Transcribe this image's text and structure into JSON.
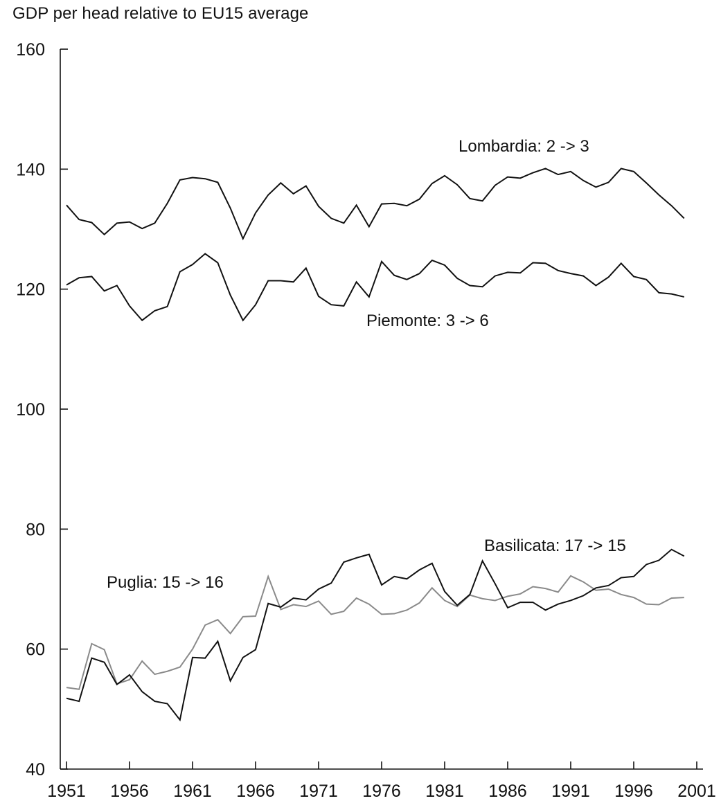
{
  "chart_data": {
    "type": "line",
    "title": "",
    "ylabel": "GDP per head relative to EU15 average",
    "xlabel": "",
    "ylim": [
      40,
      160
    ],
    "xlim": [
      1951,
      2001
    ],
    "yticks": [
      40,
      60,
      80,
      100,
      120,
      140,
      160
    ],
    "xticks": [
      1951,
      1956,
      1961,
      1966,
      1971,
      1976,
      1981,
      1986,
      1991,
      1996,
      2001
    ],
    "grid": false,
    "x": [
      1951,
      1952,
      1953,
      1954,
      1955,
      1956,
      1957,
      1958,
      1959,
      1960,
      1961,
      1962,
      1963,
      1964,
      1965,
      1966,
      1967,
      1968,
      1969,
      1970,
      1971,
      1972,
      1973,
      1974,
      1975,
      1976,
      1977,
      1978,
      1979,
      1980,
      1981,
      1982,
      1983,
      1984,
      1985,
      1986,
      1987,
      1988,
      1989,
      1990,
      1991,
      1992,
      1993,
      1994,
      1995,
      1996,
      1997,
      1998,
      1999,
      2000
    ],
    "series": [
      {
        "name": "Lombardia: 2 -> 3",
        "color": "#111111",
        "values": [
          134,
          131.6,
          131.1,
          129.1,
          131,
          131.2,
          130.1,
          131,
          134.3,
          138.2,
          138.6,
          138.4,
          137.8,
          133.5,
          128.4,
          132.7,
          135.7,
          137.7,
          135.9,
          137.2,
          133.8,
          131.8,
          131,
          134,
          130.4,
          134.2,
          134.3,
          133.9,
          135,
          137.6,
          138.9,
          137.4,
          135.1,
          134.7,
          137.3,
          138.7,
          138.5,
          139.4,
          140.1,
          139.1,
          139.6,
          138.1,
          137,
          137.8,
          140.1,
          139.6,
          137.7,
          135.7,
          133.9,
          131.8
        ]
      },
      {
        "name": "Piemonte: 3 -> 6",
        "color": "#111111",
        "values": [
          120.7,
          121.9,
          122.1,
          119.7,
          120.6,
          117.2,
          114.8,
          116.4,
          117.1,
          122.9,
          124.1,
          125.9,
          124.4,
          119,
          114.8,
          117.4,
          121.4,
          121.4,
          121.2,
          123.5,
          118.8,
          117.4,
          117.2,
          121.2,
          118.7,
          124.6,
          122.3,
          121.6,
          122.6,
          124.8,
          124,
          121.8,
          120.6,
          120.4,
          122.2,
          122.8,
          122.7,
          124.4,
          124.3,
          123.1,
          122.6,
          122.2,
          120.6,
          122,
          124.3,
          122.1,
          121.6,
          119.4,
          119.2,
          118.7
        ]
      },
      {
        "name": "Basilicata: 17 -> 15",
        "color": "#111111",
        "values": [
          51.8,
          51.3,
          58.5,
          57.8,
          54.1,
          55.7,
          52.9,
          51.3,
          50.9,
          48.2,
          58.6,
          58.5,
          61.3,
          54.7,
          58.6,
          59.9,
          67.6,
          67,
          68.5,
          68.2,
          70,
          71,
          74.5,
          75.2,
          75.8,
          70.7,
          72.1,
          71.7,
          73.2,
          74.3,
          69.6,
          67.3,
          69.1,
          74.7,
          70.9,
          66.9,
          67.8,
          67.8,
          66.5,
          67.5,
          68.1,
          68.9,
          70.2,
          70.6,
          71.9,
          72.1,
          74.1,
          74.8,
          76.6,
          75.5
        ]
      },
      {
        "name": "Puglia: 15 -> 16",
        "color": "#8a8a8a",
        "values": [
          53.6,
          53.3,
          60.9,
          59.9,
          54.2,
          54.9,
          58,
          55.8,
          56.3,
          57,
          60,
          64,
          64.9,
          62.6,
          65.4,
          65.5,
          72.1,
          66.6,
          67.4,
          67.1,
          68,
          65.8,
          66.3,
          68.5,
          67.5,
          65.8,
          65.9,
          66.5,
          67.7,
          70.2,
          68.1,
          67.1,
          69,
          68.4,
          68.1,
          68.8,
          69.2,
          70.4,
          70.1,
          69.5,
          72.2,
          71.2,
          69.8,
          70,
          69.1,
          68.6,
          67.5,
          67.4,
          68.5,
          68.6
        ]
      }
    ],
    "annotations": {
      "lombardia": "Lombardia: 2 -> 3",
      "piemonte": "Piemonte: 3 -> 6",
      "basilicata": "Basilicata: 17 -> 15",
      "puglia": "Puglia: 15 -> 16"
    }
  }
}
